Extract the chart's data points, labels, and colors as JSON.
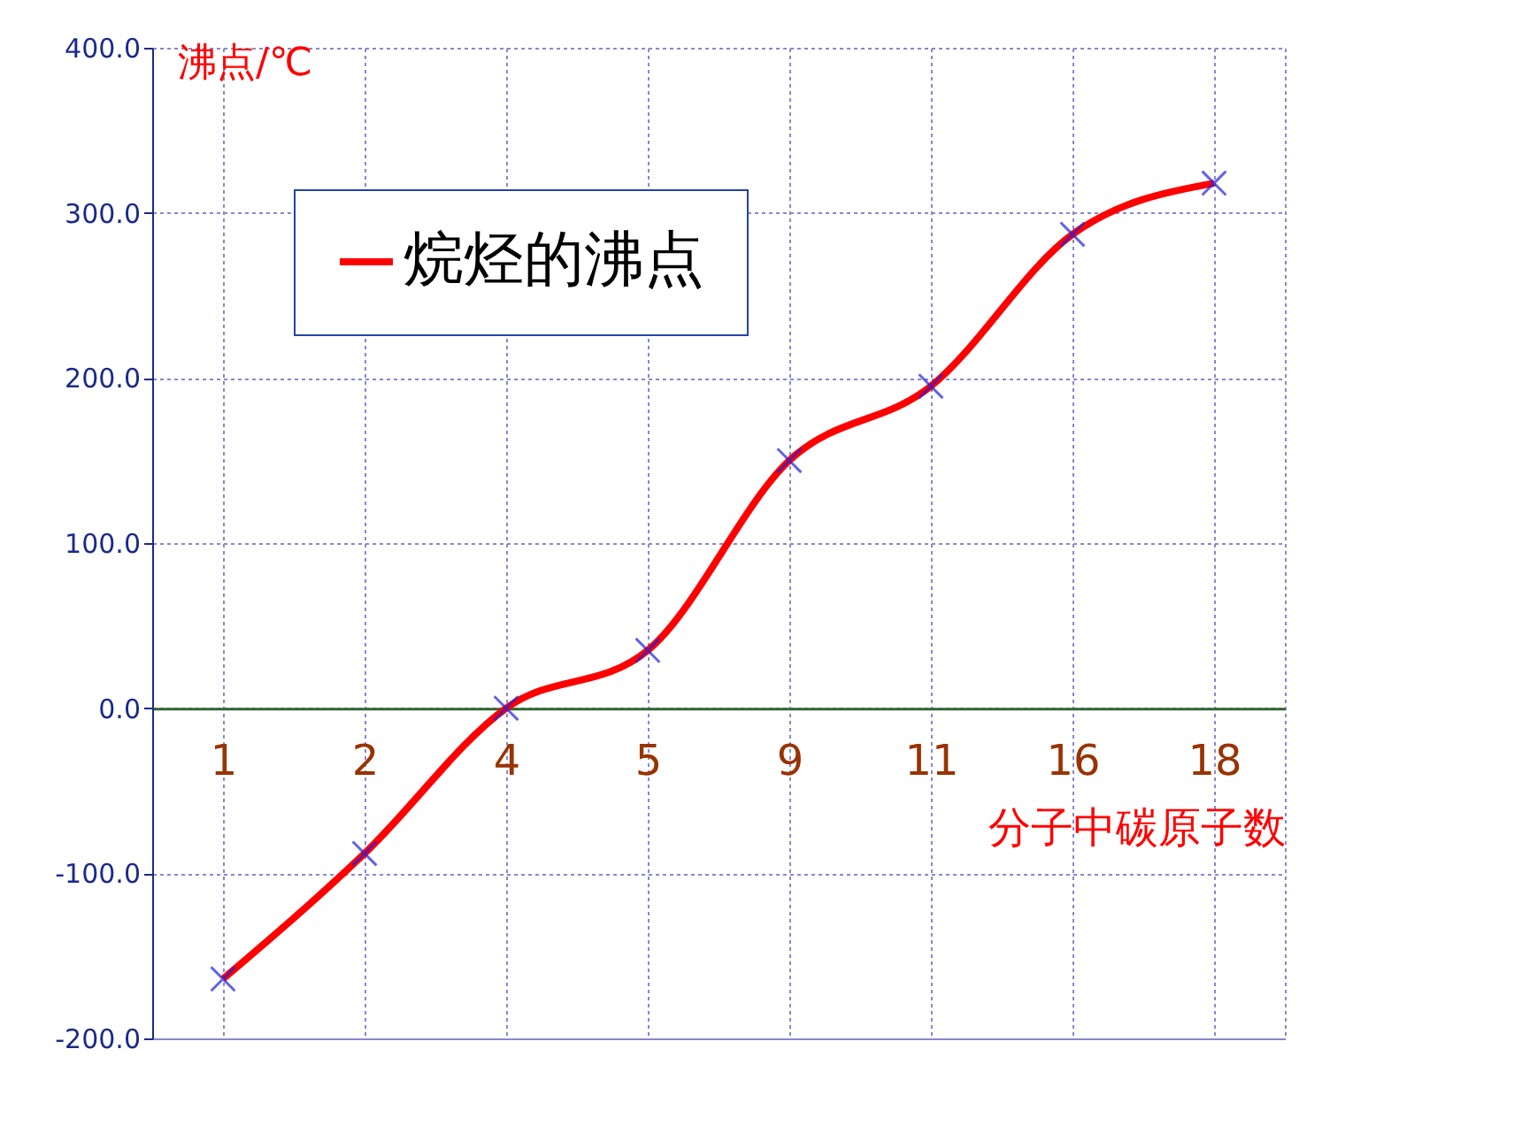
{
  "chart_data": {
    "type": "line",
    "ylabel": "沸点/℃",
    "xlabel": "分子中碳原子数",
    "categories": [
      "1",
      "2",
      "4",
      "5",
      "9",
      "11",
      "16",
      "18"
    ],
    "series": [
      {
        "name": "烷烃的沸点",
        "color": "#ff0000",
        "values": [
          -164,
          -88,
          0,
          35,
          150,
          195,
          287,
          318
        ]
      }
    ],
    "ylim": [
      -200,
      400
    ],
    "yticks": [
      {
        "value": -200,
        "label": "-200.0"
      },
      {
        "value": -100,
        "label": "-100.0"
      },
      {
        "value": 0,
        "label": "0.0"
      },
      {
        "value": 100,
        "label": "100.0"
      },
      {
        "value": 200,
        "label": "200.0"
      },
      {
        "value": 300,
        "label": "300.0"
      },
      {
        "value": 400,
        "label": "400.0"
      }
    ],
    "grid": true,
    "legend": "top left",
    "marker": "cross",
    "line_style": "solid"
  }
}
